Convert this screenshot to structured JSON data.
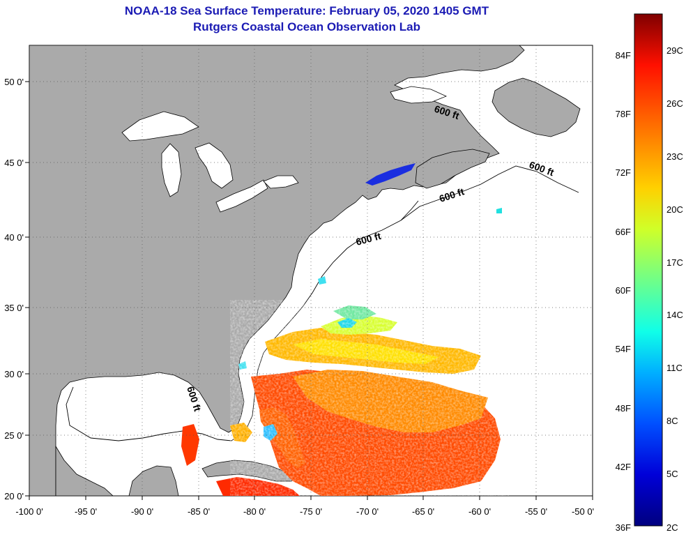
{
  "title_line1": "NOAA-18 Sea Surface Temperature:  February 05, 2020 1405 GMT",
  "title_line2": "Rutgers Coastal Ocean Observation Lab",
  "lon_ticks": [
    "-100 0'",
    "-95 0'",
    "-90 0'",
    "-85 0'",
    "-80 0'",
    "-75 0'",
    "-70 0'",
    "-65 0'",
    "-60 0'",
    "-55 0'",
    "-50 0'"
  ],
  "lat_ticks": [
    "20 0'",
    "25 0'",
    "30 0'",
    "35 0'",
    "40 0'",
    "45 0'",
    "50 0'"
  ],
  "isobath_label": "600 ft",
  "colorbar": {
    "fahrenheit": [
      "36F",
      "42F",
      "48F",
      "54F",
      "60F",
      "66F",
      "72F",
      "78F",
      "84F"
    ],
    "celsius": [
      "2C",
      "5C",
      "8C",
      "11C",
      "14C",
      "17C",
      "20C",
      "23C",
      "26C",
      "29C"
    ],
    "colors": [
      "#00007f",
      "#0000d8",
      "#0050ff",
      "#00b0ff",
      "#10ffe8",
      "#70ff88",
      "#d0ff28",
      "#ffd000",
      "#ff7000",
      "#ff1000",
      "#7f0000"
    ]
  },
  "colors": {
    "land": "#aaaaaa",
    "title": "#1b1bb4",
    "water": "#ffffff"
  }
}
